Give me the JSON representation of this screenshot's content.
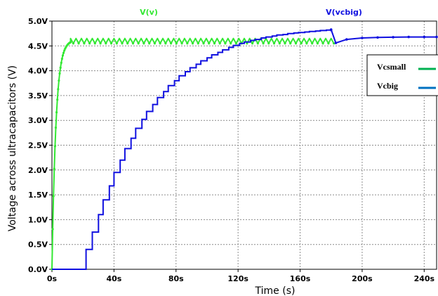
{
  "chart_data": {
    "type": "line",
    "trace_labels": [
      "V(v)",
      "V(vcbig)"
    ],
    "xlabel": "Time (s)",
    "ylabel": "Voltage across ultracapacitors (V)",
    "xlim": [
      0,
      248
    ],
    "ylim": [
      0,
      5.0
    ],
    "x_ticks": [
      0,
      40,
      80,
      120,
      160,
      200,
      240
    ],
    "x_tick_labels": [
      "0s",
      "40s",
      "80s",
      "120s",
      "160s",
      "200s",
      "240s"
    ],
    "y_ticks": [
      0,
      0.5,
      1.0,
      1.5,
      2.0,
      2.5,
      3.0,
      3.5,
      4.0,
      4.5,
      5.0
    ],
    "y_tick_labels": [
      "0.0V",
      "0.5V",
      "1.0V",
      "1.5V",
      "2.0V",
      "2.5V",
      "3.0V",
      "3.5V",
      "4.0V",
      "4.5V",
      "5.0V"
    ],
    "grid": true,
    "legend_position": "top-right",
    "legend": [
      {
        "label": "Vcsmall",
        "color": "#00b050"
      },
      {
        "label": "Vcbig",
        "color": "#0070c0"
      }
    ],
    "series": [
      {
        "name": "Vcsmall",
        "color": "#33e833",
        "rise": {
          "start_time": 0,
          "time_constant": 2.6,
          "final": 4.62
        },
        "ripple": {
          "start_time": 12,
          "end_time": 183,
          "period": 3.5,
          "low": 4.55,
          "high": 4.65
        }
      },
      {
        "name": "Vcbig",
        "color": "#1010e0",
        "x": [
          0,
          22,
          22,
          26,
          26,
          30,
          30,
          33,
          33,
          37,
          37,
          40,
          40,
          44,
          44,
          47,
          47,
          51,
          51,
          54,
          54,
          58,
          58,
          61,
          61,
          65,
          65,
          68,
          68,
          72,
          72,
          75,
          75,
          79,
          79,
          82,
          82,
          86,
          86,
          89,
          89,
          93,
          93,
          96,
          96,
          100,
          100,
          103,
          103,
          107,
          107,
          110,
          110,
          114,
          114,
          117,
          117,
          121,
          121,
          124,
          124,
          128,
          128,
          131,
          131,
          135,
          135,
          138,
          138,
          142,
          142,
          145,
          145,
          149,
          149,
          152,
          152,
          156,
          156,
          159,
          159,
          163,
          163,
          166,
          166,
          170,
          170,
          173,
          173,
          177,
          177,
          180,
          180,
          183,
          190,
          200,
          210,
          220,
          230,
          240,
          248
        ],
        "y": [
          0,
          0,
          0.4,
          0.4,
          0.75,
          0.75,
          1.1,
          1.1,
          1.4,
          1.4,
          1.68,
          1.68,
          1.95,
          1.95,
          2.2,
          2.2,
          2.43,
          2.43,
          2.64,
          2.64,
          2.84,
          2.84,
          3.02,
          3.02,
          3.18,
          3.18,
          3.32,
          3.32,
          3.46,
          3.46,
          3.58,
          3.58,
          3.7,
          3.7,
          3.8,
          3.8,
          3.9,
          3.9,
          3.98,
          3.98,
          4.06,
          4.06,
          4.13,
          4.13,
          4.2,
          4.2,
          4.26,
          4.26,
          4.32,
          4.32,
          4.37,
          4.37,
          4.42,
          4.42,
          4.47,
          4.47,
          4.51,
          4.51,
          4.55,
          4.55,
          4.58,
          4.58,
          4.61,
          4.61,
          4.63,
          4.63,
          4.66,
          4.66,
          4.68,
          4.68,
          4.7,
          4.7,
          4.72,
          4.72,
          4.73,
          4.73,
          4.75,
          4.75,
          4.76,
          4.76,
          4.77,
          4.77,
          4.78,
          4.78,
          4.79,
          4.79,
          4.8,
          4.8,
          4.81,
          4.81,
          4.82,
          4.82,
          4.83,
          4.56,
          4.63,
          4.66,
          4.67,
          4.675,
          4.68,
          4.68,
          4.68
        ]
      }
    ]
  }
}
